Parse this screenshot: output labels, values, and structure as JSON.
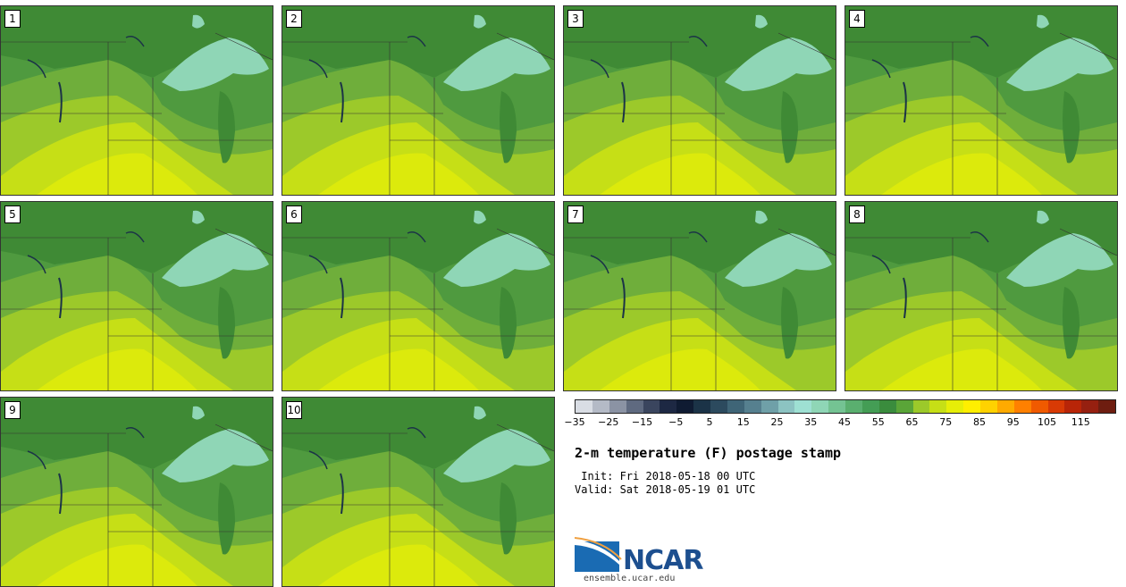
{
  "panels": [
    {
      "label": "1"
    },
    {
      "label": "2"
    },
    {
      "label": "3"
    },
    {
      "label": "4"
    },
    {
      "label": "5"
    },
    {
      "label": "6"
    },
    {
      "label": "7"
    },
    {
      "label": "8"
    },
    {
      "label": "9"
    },
    {
      "label": "10"
    }
  ],
  "colorbar": {
    "colors": [
      "#d9dde4",
      "#b4bac6",
      "#8b93a4",
      "#5f6a80",
      "#3a455e",
      "#1d2843",
      "#0f1b32",
      "#1b3347",
      "#2c4a5e",
      "#3f6577",
      "#56808f",
      "#6fa0a8",
      "#8cc3c2",
      "#9ee0d3",
      "#8fd6b6",
      "#74c393",
      "#5aaf6f",
      "#449d55",
      "#3a8c3d",
      "#5aa538",
      "#9cc92a",
      "#c6df16",
      "#e6ee08",
      "#ffef00",
      "#ffd200",
      "#ffaa00",
      "#ff8000",
      "#f05a00",
      "#d83a05",
      "#b82508",
      "#962010",
      "#6e1d10"
    ],
    "tick_labels": [
      "−35",
      "−25",
      "−15",
      "−5",
      "5",
      "15",
      "25",
      "35",
      "45",
      "55",
      "65",
      "75",
      "85",
      "95",
      "105",
      "115"
    ]
  },
  "title": "2-m temperature (F) postage stamp",
  "init_text": " Init: Fri 2018-05-18 00 UTC",
  "valid_text": "Valid: Sat 2018-05-19 01 UTC",
  "logo": {
    "text": "NCAR",
    "url": "ensemble.ucar.edu"
  }
}
